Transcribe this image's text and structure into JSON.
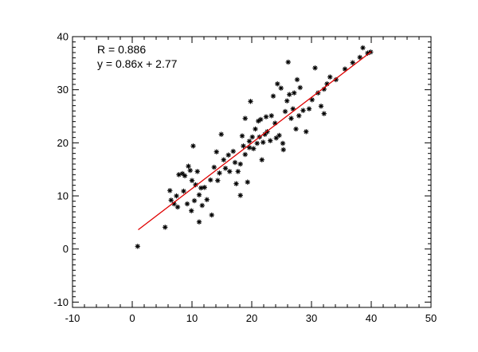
{
  "chart_data": {
    "type": "scatter",
    "title": "",
    "xlabel": "",
    "ylabel": "",
    "xlim": [
      -10,
      50
    ],
    "ylim": [
      -11,
      40
    ],
    "x_ticks": [
      -10,
      0,
      10,
      20,
      30,
      40,
      50
    ],
    "y_ticks": [
      -10,
      0,
      10,
      20,
      30,
      40
    ],
    "x_minor_step": 2,
    "y_minor_step": 1,
    "grid": false,
    "annotations": [
      "R = 0.886",
      "y = 0.86x + 2.77"
    ],
    "fit_line": {
      "slope": 0.86,
      "intercept": 2.77,
      "x_range": [
        1,
        40
      ],
      "color": "#e00000"
    },
    "marker_color": "#000000",
    "points": [
      [
        0.9,
        0.5
      ],
      [
        5.5,
        4.1
      ],
      [
        6.3,
        11.0
      ],
      [
        6.5,
        9.2
      ],
      [
        7.0,
        8.5
      ],
      [
        7.4,
        10.0
      ],
      [
        7.8,
        14.0
      ],
      [
        7.6,
        7.9
      ],
      [
        8.4,
        14.2
      ],
      [
        8.6,
        10.9
      ],
      [
        8.8,
        13.8
      ],
      [
        9.2,
        8.5
      ],
      [
        9.4,
        15.6
      ],
      [
        9.7,
        14.8
      ],
      [
        9.9,
        7.2
      ],
      [
        10.0,
        12.9
      ],
      [
        10.2,
        19.4
      ],
      [
        10.4,
        9.1
      ],
      [
        10.6,
        12.1
      ],
      [
        10.9,
        14.6
      ],
      [
        11.2,
        10.2
      ],
      [
        11.5,
        11.5
      ],
      [
        11.7,
        8.2
      ],
      [
        11.2,
        5.1
      ],
      [
        12.1,
        11.6
      ],
      [
        12.5,
        9.3
      ],
      [
        13.1,
        13.0
      ],
      [
        13.3,
        6.4
      ],
      [
        13.7,
        15.4
      ],
      [
        14.1,
        18.3
      ],
      [
        14.3,
        12.9
      ],
      [
        14.6,
        14.3
      ],
      [
        14.9,
        21.6
      ],
      [
        15.3,
        16.8
      ],
      [
        15.6,
        15.2
      ],
      [
        16.1,
        17.7
      ],
      [
        16.3,
        14.6
      ],
      [
        16.9,
        18.4
      ],
      [
        17.2,
        16.3
      ],
      [
        17.4,
        12.3
      ],
      [
        17.7,
        14.6
      ],
      [
        18.1,
        16.0
      ],
      [
        18.1,
        10.1
      ],
      [
        18.4,
        21.3
      ],
      [
        18.6,
        19.4
      ],
      [
        18.9,
        17.8
      ],
      [
        18.9,
        24.6
      ],
      [
        19.3,
        12.6
      ],
      [
        19.6,
        19.1
      ],
      [
        19.6,
        20.3
      ],
      [
        19.8,
        27.8
      ],
      [
        20.1,
        21.1
      ],
      [
        20.3,
        18.9
      ],
      [
        20.6,
        22.6
      ],
      [
        20.9,
        19.9
      ],
      [
        21.1,
        24.1
      ],
      [
        21.3,
        21.1
      ],
      [
        21.5,
        24.4
      ],
      [
        21.7,
        16.8
      ],
      [
        21.9,
        20.1
      ],
      [
        22.2,
        21.6
      ],
      [
        22.4,
        24.9
      ],
      [
        22.6,
        22.1
      ],
      [
        23.1,
        20.4
      ],
      [
        23.3,
        25.1
      ],
      [
        23.6,
        28.8
      ],
      [
        23.9,
        23.7
      ],
      [
        24.1,
        20.9
      ],
      [
        24.3,
        31.1
      ],
      [
        24.6,
        21.4
      ],
      [
        24.9,
        30.3
      ],
      [
        25.2,
        19.9
      ],
      [
        25.3,
        18.7
      ],
      [
        25.6,
        25.9
      ],
      [
        25.9,
        27.9
      ],
      [
        26.1,
        35.2
      ],
      [
        26.3,
        29.1
      ],
      [
        26.6,
        24.6
      ],
      [
        26.9,
        26.4
      ],
      [
        27.1,
        29.4
      ],
      [
        27.4,
        22.6
      ],
      [
        27.6,
        31.9
      ],
      [
        27.9,
        25.1
      ],
      [
        28.1,
        30.4
      ],
      [
        28.6,
        26.1
      ],
      [
        29.1,
        22.1
      ],
      [
        29.6,
        26.4
      ],
      [
        30.1,
        28.1
      ],
      [
        30.6,
        34.1
      ],
      [
        31.1,
        29.4
      ],
      [
        31.6,
        26.9
      ],
      [
        32.1,
        30.1
      ],
      [
        32.1,
        25.5
      ],
      [
        32.6,
        31.1
      ],
      [
        33.1,
        32.4
      ],
      [
        34.1,
        31.9
      ],
      [
        35.6,
        33.9
      ],
      [
        36.9,
        35.1
      ],
      [
        38.1,
        36.1
      ],
      [
        38.6,
        37.9
      ],
      [
        39.9,
        37.1
      ],
      [
        39.4,
        36.9
      ]
    ]
  }
}
